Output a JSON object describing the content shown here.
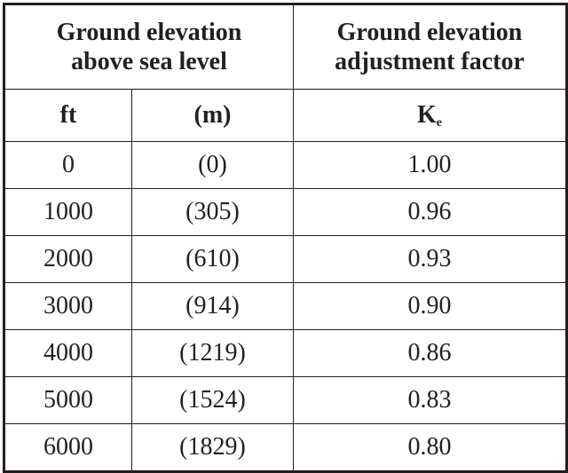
{
  "table": {
    "header": {
      "groups": [
        {
          "lines": [
            "Ground elevation",
            "above sea level"
          ]
        },
        {
          "lines": [
            "Ground elevation",
            "adjustment factor"
          ]
        }
      ],
      "columns": [
        "ft",
        "(m)",
        {
          "symbol": "K",
          "subscript": "e"
        }
      ]
    },
    "rows": [
      [
        "0",
        "(0)",
        "1.00"
      ],
      [
        "1000",
        "(305)",
        "0.96"
      ],
      [
        "2000",
        "(610)",
        "0.93"
      ],
      [
        "3000",
        "(914)",
        "0.90"
      ],
      [
        "4000",
        "(1219)",
        "0.86"
      ],
      [
        "5000",
        "(1524)",
        "0.83"
      ],
      [
        "6000",
        "(1829)",
        "0.80"
      ]
    ]
  }
}
